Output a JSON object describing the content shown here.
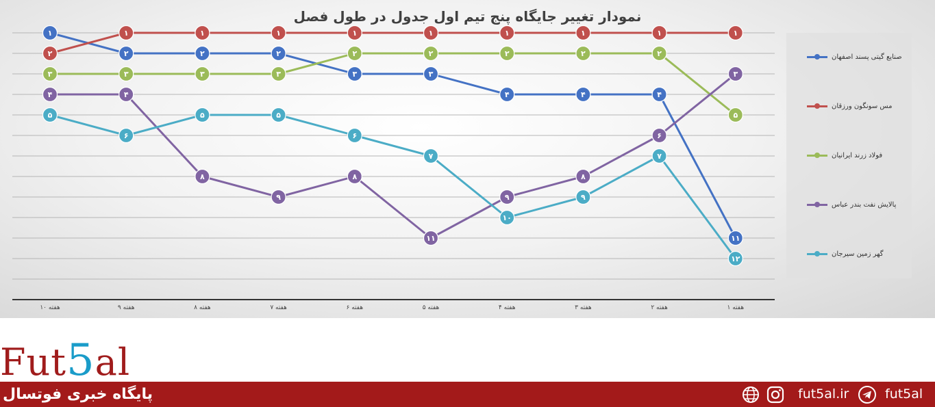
{
  "chart_data": {
    "type": "line",
    "title": "نمودار تغییر جایگاه پنج تیم اول جدول در طول فصل",
    "categories": [
      "هفته ۱۰",
      "هفته ۹",
      "هفته ۸",
      "هفته ۷",
      "هفته ۶",
      "هفته ۵",
      "هفته ۴",
      "هفته ۳",
      "هفته ۲",
      "هفته ۱"
    ],
    "x_axis_direction": "right-to-left (هفته ۱ on the right)",
    "y_axis": {
      "inverted": true,
      "ylim": [
        1,
        13
      ],
      "tick_labels_shown": false
    },
    "grid": true,
    "legend_position": "right",
    "data_labels_shown": true,
    "series": [
      {
        "name": "صنایع گیتی پسند اصفهان",
        "color": "#4472c4",
        "values": [
          1,
          2,
          2,
          2,
          3,
          3,
          4,
          4,
          4,
          11
        ],
        "labels": [
          "۱",
          "۲",
          "۲",
          "۲",
          "۳",
          "۳",
          "۴",
          "۴",
          "۴",
          "۱۱"
        ]
      },
      {
        "name": "مس سونگون ورزقان",
        "color": "#c0504d",
        "values": [
          2,
          1,
          1,
          1,
          1,
          1,
          1,
          1,
          1,
          1
        ],
        "labels": [
          "۲",
          "۱",
          "۱",
          "۱",
          "۱",
          "۱",
          "۱",
          "۱",
          "۱",
          "۱"
        ]
      },
      {
        "name": "فولاد زرند ایرانیان",
        "color": "#9bbb59",
        "values": [
          3,
          3,
          3,
          3,
          2,
          2,
          2,
          2,
          2,
          5
        ],
        "labels": [
          "۳",
          "۳",
          "۳",
          "۳",
          "۲",
          "۲",
          "۲",
          "۲",
          "۲",
          "۵"
        ]
      },
      {
        "name": "پالایش نفت بندر عباس",
        "color": "#8064a2",
        "values": [
          4,
          4,
          8,
          9,
          8,
          11,
          9,
          8,
          6,
          3
        ],
        "labels": [
          "۴",
          "۴",
          "۸",
          "۹",
          "۸",
          "۱۱",
          "۹",
          "۸",
          "۶",
          "۳"
        ]
      },
      {
        "name": "گهر زمین سیرجان",
        "color": "#4bacc6",
        "values": [
          5,
          6,
          5,
          5,
          6,
          7,
          10,
          9,
          7,
          12
        ],
        "labels": [
          "۵",
          "۶",
          "۵",
          "۵",
          "۶",
          "۷",
          "۱۰",
          "۹",
          "۷",
          "۱۲"
        ]
      }
    ]
  },
  "footer": {
    "logo_prefix": "Fut",
    "logo_digit": "5",
    "logo_suffix": "al",
    "tagline": "پایگاه خبری فوتسال",
    "website": "fut5al.ir",
    "telegram": "fut5al",
    "icons": [
      "globe-icon",
      "instagram-icon",
      "telegram-icon"
    ],
    "bar_color": "#a31a1a",
    "logo_red": "#a01c1c",
    "logo_blue": "#1a9cc9"
  }
}
